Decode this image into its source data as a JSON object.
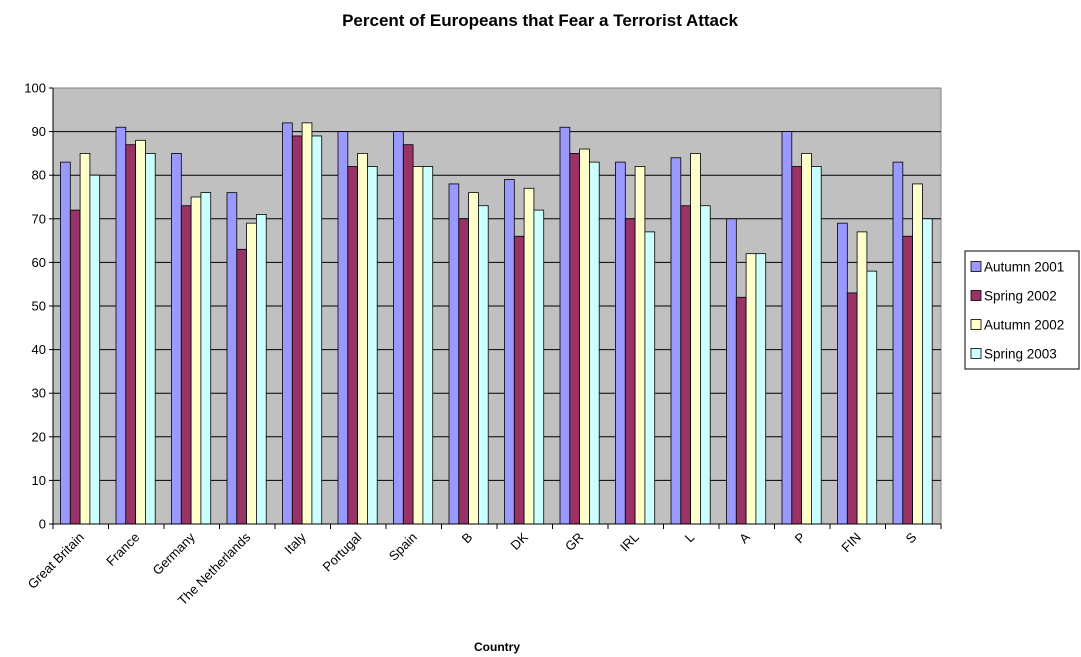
{
  "chart_data": {
    "type": "bar",
    "title": "Percent of Europeans that Fear a Terrorist Attack",
    "xlabel": "Country",
    "ylabel": "",
    "ylim": [
      0,
      100
    ],
    "yticks": [
      0,
      10,
      20,
      30,
      40,
      50,
      60,
      70,
      80,
      90,
      100
    ],
    "grid": true,
    "legend_position": "right",
    "plot_background": "#c0c0c0",
    "categories": [
      "Great Britain",
      "France",
      "Germany",
      "The Netherlands",
      "Italy",
      "Portugal",
      "Spain",
      "B",
      "DK",
      "GR",
      "IRL",
      "L",
      "A",
      "P",
      "FIN",
      "S"
    ],
    "series": [
      {
        "name": "Autumn 2001",
        "color": "#9999ff",
        "values": [
          83,
          91,
          85,
          76,
          92,
          90,
          90,
          78,
          79,
          91,
          83,
          84,
          70,
          90,
          69,
          83
        ]
      },
      {
        "name": "Spring 2002",
        "color": "#993366",
        "values": [
          72,
          87,
          73,
          63,
          89,
          82,
          87,
          70,
          66,
          85,
          70,
          73,
          52,
          82,
          53,
          66
        ]
      },
      {
        "name": "Autumn 2002",
        "color": "#ffffcc",
        "values": [
          85,
          88,
          75,
          69,
          92,
          85,
          82,
          76,
          77,
          86,
          82,
          85,
          62,
          85,
          67,
          78
        ]
      },
      {
        "name": "Spring 2003",
        "color": "#ccffff",
        "values": [
          80,
          85,
          76,
          71,
          89,
          82,
          82,
          73,
          72,
          83,
          67,
          73,
          62,
          82,
          58,
          70
        ]
      }
    ]
  }
}
